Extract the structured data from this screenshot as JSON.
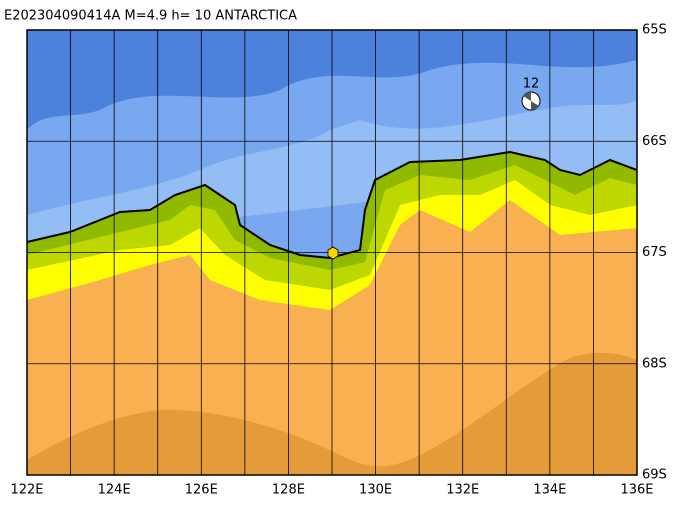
{
  "header": {
    "title": "E202304090414A  M=4.9  h=  10  ANTARCTICA"
  },
  "map": {
    "lon_ticks": [
      {
        "value": 122,
        "label": "122E"
      },
      {
        "value": 124,
        "label": "124E"
      },
      {
        "value": 126,
        "label": "126E"
      },
      {
        "value": 128,
        "label": "128E"
      },
      {
        "value": 130,
        "label": "130E"
      },
      {
        "value": 132,
        "label": "132E"
      },
      {
        "value": 134,
        "label": "134E"
      },
      {
        "value": 136,
        "label": "136E"
      }
    ],
    "lat_ticks": [
      {
        "value": 65,
        "label": "65S"
      },
      {
        "value": 66,
        "label": "66S"
      },
      {
        "value": 67,
        "label": "67S"
      },
      {
        "value": 68,
        "label": "68S"
      },
      {
        "value": 69,
        "label": "69S"
      }
    ],
    "mechanism_label": "12"
  }
}
